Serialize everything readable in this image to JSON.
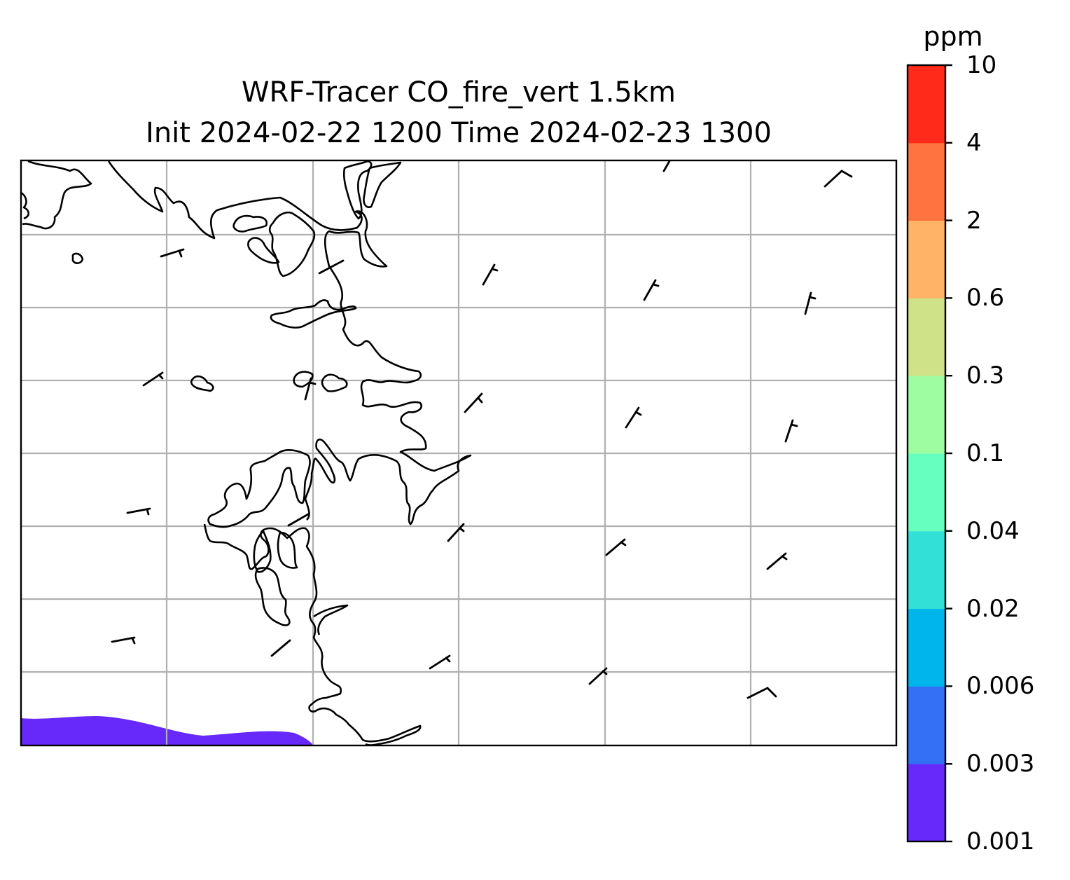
{
  "title": "WRF-Tracer CO_fire_vert 1.5km",
  "subtitle": "Init 2024-02-22 1200 Time 2024-02-23 1300",
  "colorbar": {
    "unit": "ppm",
    "levels": [
      "0.001",
      "0.003",
      "0.006",
      "0.02",
      "0.04",
      "0.1",
      "0.3",
      "0.6",
      "2",
      "4",
      "10"
    ],
    "colors": [
      "#6629fa",
      "#3370f5",
      "#00b5ec",
      "#33e0d8",
      "#66ffbf",
      "#9dfda0",
      "#cfe288",
      "#ffb366",
      "#ff7340",
      "#ff2a1a"
    ]
  },
  "map": {
    "gridlines": true,
    "coastline_color": "#000000",
    "gridline_color": "#b0b0b0",
    "shaded_region_level": "0.001"
  }
}
